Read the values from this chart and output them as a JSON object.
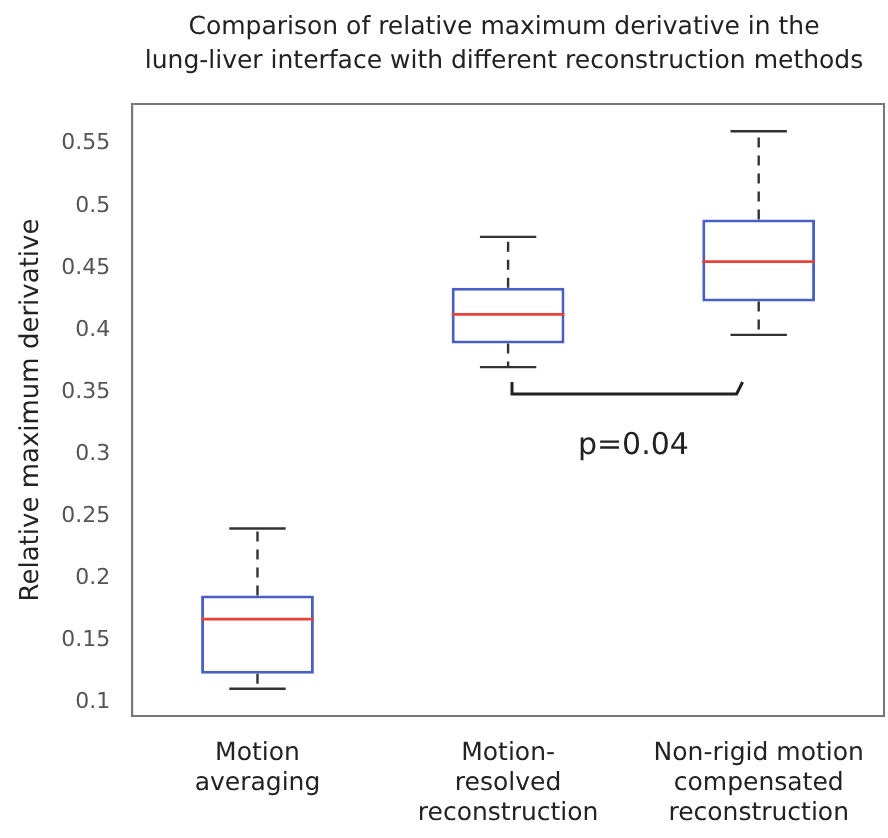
{
  "chart_data": {
    "type": "box",
    "title": "Comparison of relative maximum derivative in the\nlung-liver interface with different reconstruction methods",
    "ylabel": "Relative maximum derivative",
    "categories": [
      "Motion\naveraging",
      "Motion-\nresolved\nreconstruction",
      "Non-rigid motion\ncompensated\nreconstruction"
    ],
    "boxes": [
      {
        "low": 0.111,
        "q1": 0.123,
        "median": 0.167,
        "q3": 0.186,
        "high": 0.24
      },
      {
        "low": 0.37,
        "q1": 0.389,
        "median": 0.4125,
        "q3": 0.434,
        "high": 0.475
      },
      {
        "low": 0.396,
        "q1": 0.423,
        "median": 0.455,
        "q3": 0.489,
        "high": 0.56
      }
    ],
    "color": "#4a5fc1",
    "ylim": [
      0.089,
      0.582
    ],
    "yticks": [
      0.1,
      0.15,
      0.2,
      0.25,
      0.3,
      0.35,
      0.4,
      0.45,
      0.5,
      0.55
    ],
    "annotations": [
      "p=0.04"
    ],
    "grid": false,
    "legend": false
  }
}
